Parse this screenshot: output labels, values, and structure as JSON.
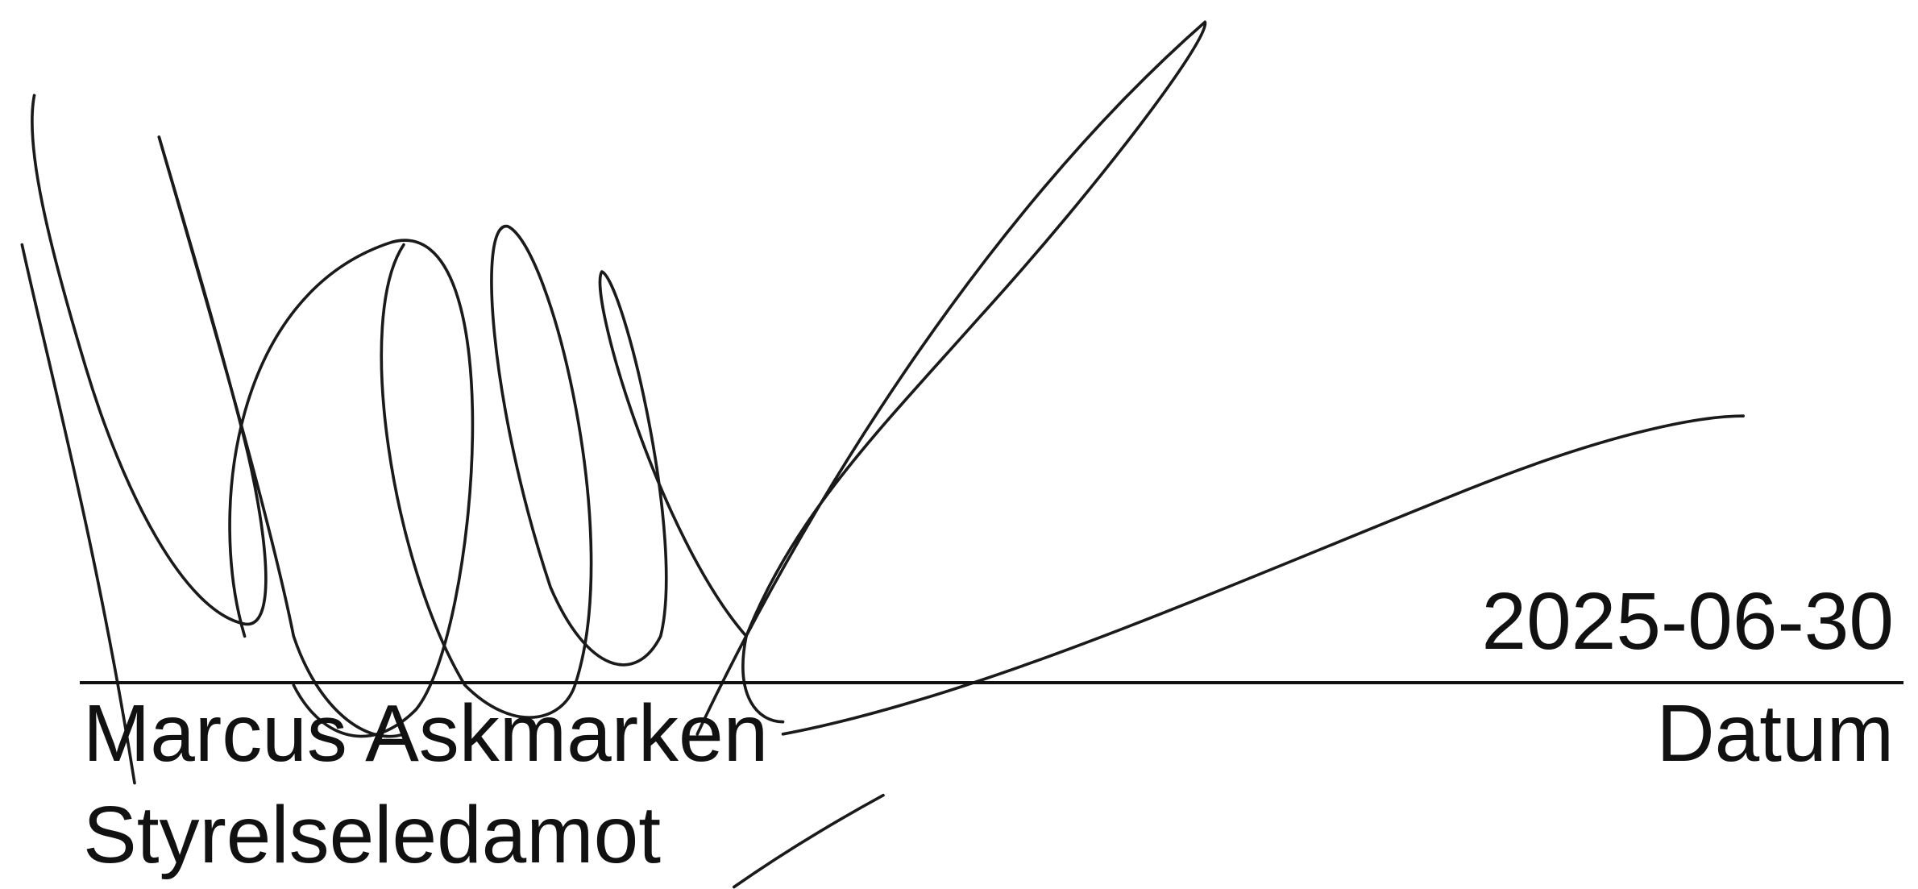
{
  "signature": {
    "date": "2025-06-30",
    "name": "Marcus Askmarken",
    "date_label": "Datum",
    "role": "Styrelseledamot"
  }
}
